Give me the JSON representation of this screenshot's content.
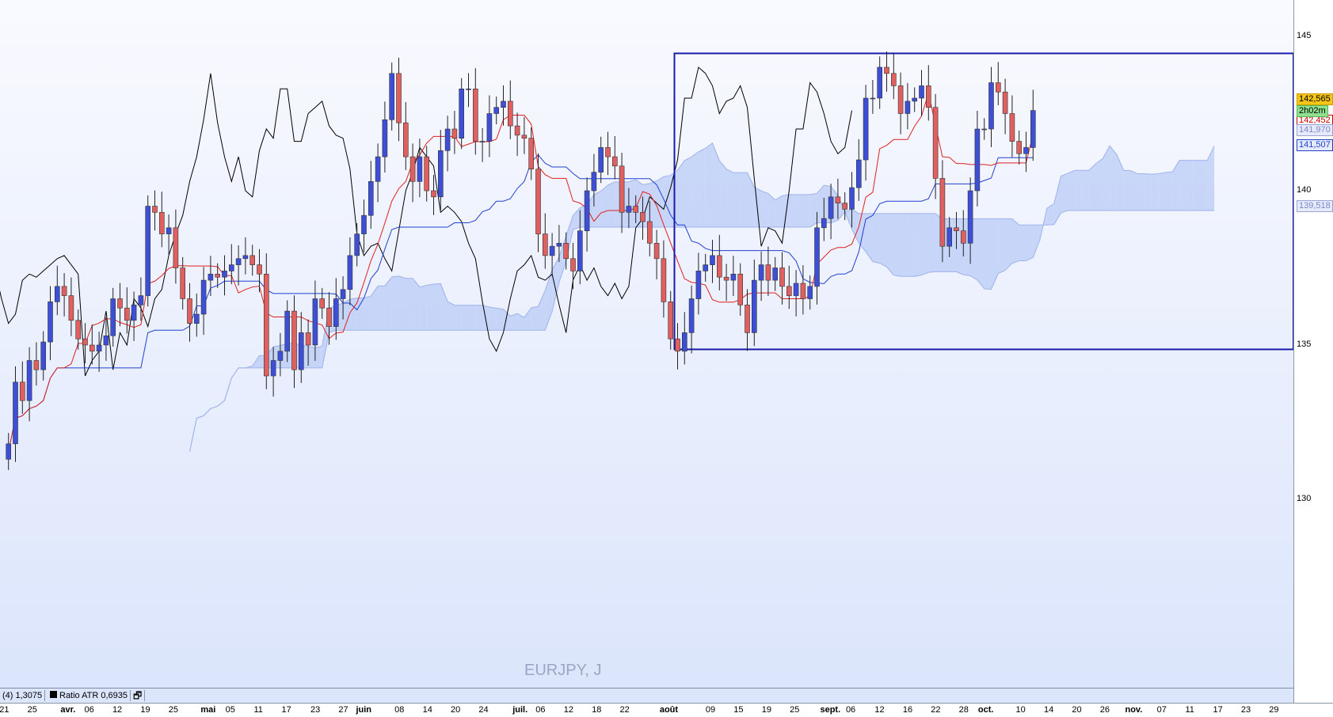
{
  "chart_data": {
    "type": "candlestick",
    "symbol_label": "EURJPY, J",
    "closes": [
      131.8,
      133.8,
      133.2,
      134.5,
      134.2,
      135.1,
      136.4,
      136.9,
      136.6,
      135.8,
      135.2,
      135.0,
      134.8,
      135.0,
      135.3,
      136.5,
      136.2,
      135.8,
      136.3,
      136.6,
      139.5,
      139.3,
      138.6,
      138.8,
      137.5,
      136.5,
      135.7,
      136.0,
      137.1,
      137.3,
      137.2,
      137.4,
      137.6,
      137.8,
      137.9,
      137.6,
      137.3,
      134.0,
      134.5,
      134.8,
      136.1,
      134.2,
      135.4,
      135.0,
      136.5,
      136.2,
      135.6,
      136.5,
      136.8,
      137.9,
      138.6,
      139.2,
      140.3,
      141.1,
      142.3,
      143.8,
      142.2,
      141.1,
      140.3,
      141.1,
      140.0,
      139.8,
      141.3,
      142.0,
      141.7,
      143.3,
      143.3,
      141.6,
      141.6,
      142.5,
      142.7,
      142.9,
      142.1,
      141.8,
      141.7,
      140.7,
      138.6,
      137.9,
      138.2,
      138.3,
      137.8,
      137.4,
      138.7,
      140.0,
      140.6,
      141.4,
      141.1,
      140.8,
      139.3,
      139.5,
      139.3,
      139.0,
      138.3,
      137.8,
      136.4,
      135.2,
      134.8,
      135.4,
      136.5,
      137.4,
      137.6,
      137.9,
      137.2,
      137.1,
      137.3,
      136.3,
      135.4,
      137.1,
      137.6,
      137.1,
      137.5,
      136.9,
      136.6,
      137.0,
      136.5,
      136.9,
      138.8,
      139.1,
      139.8,
      139.6,
      139.4,
      140.1,
      141.0,
      143.0,
      143.0,
      144.0,
      143.8,
      143.4,
      142.5,
      142.9,
      143.0,
      143.4,
      142.7,
      140.4,
      138.2,
      138.8,
      138.7,
      138.3,
      140.0,
      142.0,
      142.0,
      143.5,
      143.2,
      142.5,
      141.6,
      141.2,
      141.4,
      142.6
    ],
    "indicators": [
      "Ichimoku tenkan",
      "Ichimoku kijun",
      "Chikou",
      "Senkou span A/B cloud"
    ],
    "range_box": {
      "high": 144.45,
      "low": 134.86
    },
    "ylim": [
      125.5,
      146.2
    ],
    "y_ticks": [
      "145",
      "140",
      "135",
      "130"
    ],
    "x_tick_labels": [
      "21",
      "25",
      "avr.",
      "06",
      "12",
      "19",
      "25",
      "mai",
      "05",
      "11",
      "17",
      "23",
      "27",
      "juin",
      "08",
      "14",
      "20",
      "24",
      "juil.",
      "06",
      "12",
      "18",
      "22",
      "août",
      "09",
      "15",
      "19",
      "25",
      "sept.",
      "06",
      "12",
      "16",
      "22",
      "28",
      "oct.",
      "10",
      "14",
      "20",
      "26",
      "nov.",
      "07",
      "11",
      "17",
      "23",
      "29"
    ],
    "colors": {
      "up": "#3d4fd6",
      "down": "#e06060",
      "tenkan": "#e02020",
      "kijun": "#2040d0",
      "chikou": "#000000",
      "cloud": "#b9cbf5",
      "box": "#1a1aa8"
    }
  },
  "price_tags": {
    "last": "142,565",
    "timer": "2h02m",
    "tenkan": "142,452",
    "span_a": "141,970",
    "kijun": "141,507",
    "span_b": "139,518"
  },
  "indicator_bar": {
    "atr": "(4) 1,3075",
    "ratio_atr": "Ratio ATR 0,6935"
  }
}
